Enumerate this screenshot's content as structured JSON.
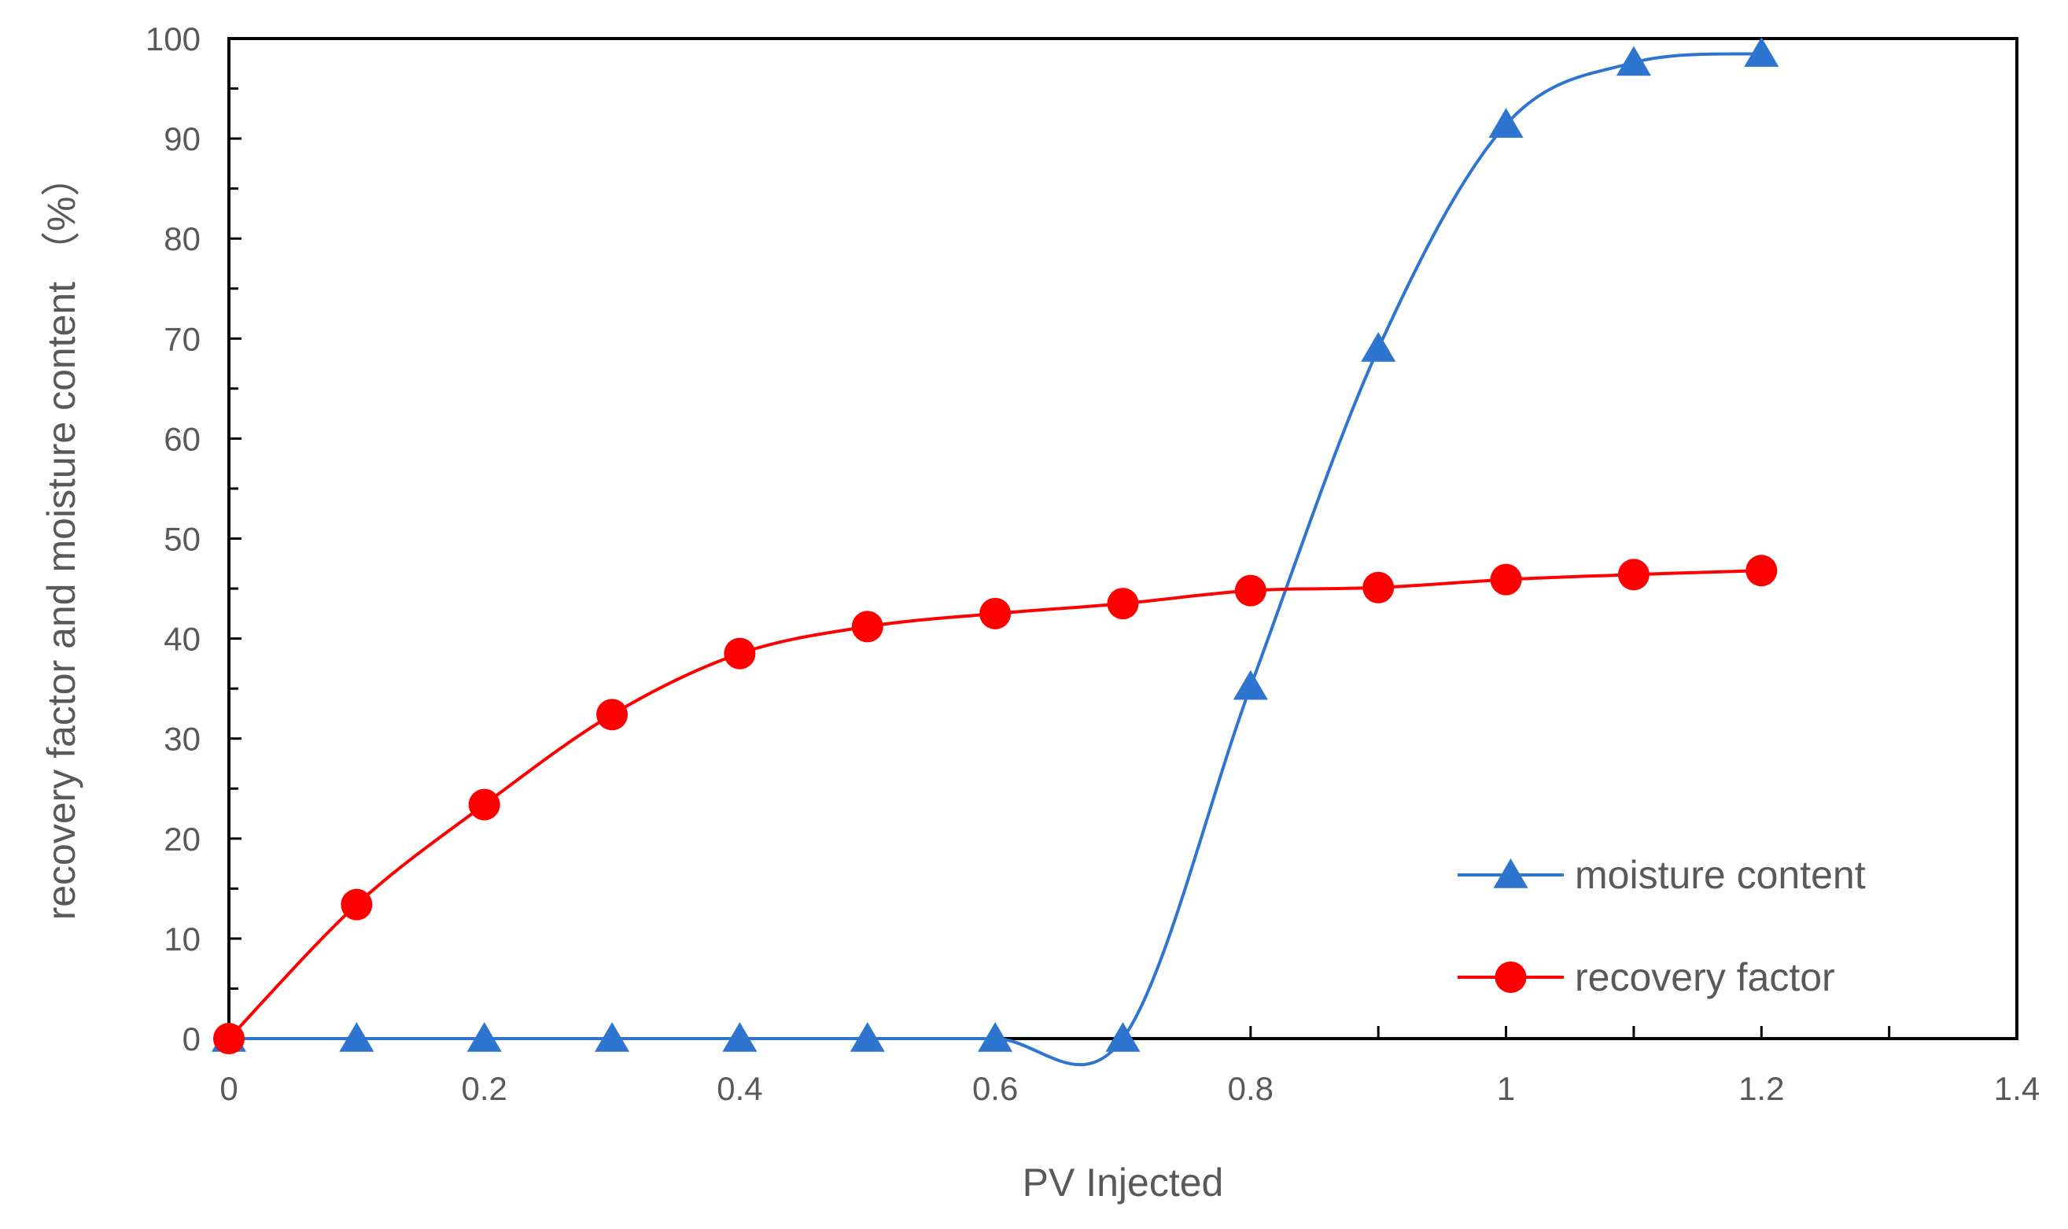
{
  "chart_data": {
    "type": "line",
    "xlabel": "PV Injected",
    "ylabel": "recovery factor and moisture content （%）",
    "xlim": [
      0,
      1.4
    ],
    "ylim": [
      0,
      100
    ],
    "x_ticks": [
      "0",
      "0.2",
      "0.4",
      "0.6",
      "0.8",
      "1",
      "1.2",
      "1.4"
    ],
    "y_ticks": [
      "0",
      "10",
      "20",
      "30",
      "40",
      "50",
      "60",
      "70",
      "80",
      "90",
      "100"
    ],
    "grid": false,
    "legend_position": "bottom-right",
    "series": [
      {
        "name": "moisture content",
        "color": "#2E75D0",
        "marker": "triangle",
        "x": [
          0,
          0.1,
          0.2,
          0.3,
          0.4,
          0.5,
          0.6,
          0.7,
          0.8,
          0.9,
          1.0,
          1.1,
          1.2
        ],
        "values": [
          0,
          0,
          0,
          0,
          0,
          0,
          0,
          0,
          35.2,
          69,
          91.4,
          97.6,
          98.5
        ]
      },
      {
        "name": "recovery factor",
        "color": "#FF0000",
        "marker": "circle",
        "x": [
          0,
          0.1,
          0.2,
          0.3,
          0.4,
          0.5,
          0.6,
          0.7,
          0.8,
          0.9,
          1.0,
          1.1,
          1.2
        ],
        "values": [
          0,
          13.4,
          23.4,
          32.4,
          38.5,
          41.2,
          42.5,
          43.5,
          44.8,
          45.1,
          45.9,
          46.4,
          46.8
        ]
      }
    ]
  }
}
